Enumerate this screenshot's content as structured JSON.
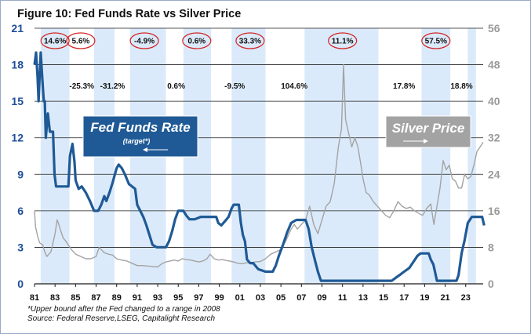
{
  "chart_data": {
    "type": "line",
    "title": "Figure 10: Fed Funds Rate vs Silver Price",
    "x_ticks": [
      "81",
      "83",
      "85",
      "87",
      "89",
      "91",
      "93",
      "95",
      "97",
      "99",
      "01",
      "03",
      "05",
      "07",
      "09",
      "11",
      "13",
      "15",
      "17",
      "19",
      "21",
      "23"
    ],
    "left_axis": {
      "ylim": [
        0,
        21
      ],
      "ticks": [
        "0",
        "3",
        "6",
        "9",
        "12",
        "15",
        "18",
        "21"
      ],
      "color": "#1f4e9a"
    },
    "right_axis": {
      "ylim": [
        0,
        56
      ],
      "ticks": [
        "0",
        "8",
        "16",
        "24",
        "32",
        "40",
        "48",
        "56"
      ],
      "color": "#9a9a9a"
    },
    "shaded_bands": [
      [
        81.6,
        84.4
      ],
      [
        86.8,
        88.8
      ],
      [
        90.3,
        93.8
      ],
      [
        95.5,
        98.2
      ],
      [
        100.2,
        103.5
      ],
      [
        107.3,
        114.5
      ],
      [
        118.7,
        121.5
      ],
      [
        123.2,
        124.0
      ]
    ],
    "annotations_circled": [
      {
        "text": "14.6%",
        "x": 83.0
      },
      {
        "text": "5.6%",
        "x": 85.5
      },
      {
        "text": "-4.9%",
        "x": 91.7
      },
      {
        "text": "0.6%",
        "x": 96.8
      },
      {
        "text": "33.3%",
        "x": 102.0
      },
      {
        "text": "11.1%",
        "x": 111.0
      },
      {
        "text": "57.5%",
        "x": 120.1
      }
    ],
    "annotations_plain": [
      {
        "text": "-25.3%",
        "x": 85.6
      },
      {
        "text": "-31.2%",
        "x": 88.6
      },
      {
        "text": "0.6%",
        "x": 94.8
      },
      {
        "text": "-9.5%",
        "x": 100.5
      },
      {
        "text": "104.6%",
        "x": 106.3
      },
      {
        "text": "17.8%",
        "x": 117.0
      },
      {
        "text": "18.8%",
        "x": 122.6
      }
    ],
    "legend_fed": {
      "title": "Fed Funds Rate",
      "subtitle": "(target*)"
    },
    "legend_silver": {
      "title": "Silver Price"
    },
    "series": [
      {
        "name": "Fed Funds Rate",
        "axis": "left",
        "color": "#1f5a96",
        "points": [
          [
            81.0,
            18.0
          ],
          [
            81.15,
            19.0
          ],
          [
            81.3,
            17.0
          ],
          [
            81.4,
            15.0
          ],
          [
            81.5,
            17.0
          ],
          [
            81.6,
            19.0
          ],
          [
            81.75,
            17.0
          ],
          [
            81.9,
            15.0
          ],
          [
            82.0,
            15.0
          ],
          [
            82.1,
            12.0
          ],
          [
            82.3,
            14.0
          ],
          [
            82.5,
            12.5
          ],
          [
            82.8,
            12.5
          ],
          [
            82.95,
            9.0
          ],
          [
            83.1,
            8.0
          ],
          [
            84.0,
            8.0
          ],
          [
            84.3,
            8.0
          ],
          [
            84.45,
            10.5
          ],
          [
            84.7,
            11.5
          ],
          [
            84.9,
            10.0
          ],
          [
            85.0,
            8.5
          ],
          [
            85.3,
            7.8
          ],
          [
            85.6,
            8.0
          ],
          [
            86.0,
            7.5
          ],
          [
            86.4,
            6.8
          ],
          [
            86.8,
            6.0
          ],
          [
            87.2,
            6.0
          ],
          [
            87.5,
            6.5
          ],
          [
            87.8,
            7.2
          ],
          [
            88.0,
            6.8
          ],
          [
            88.3,
            7.5
          ],
          [
            88.6,
            8.3
          ],
          [
            89.0,
            9.5
          ],
          [
            89.2,
            9.8
          ],
          [
            89.5,
            9.5
          ],
          [
            89.8,
            9.0
          ],
          [
            90.2,
            8.2
          ],
          [
            90.5,
            8.0
          ],
          [
            90.8,
            7.8
          ],
          [
            91.0,
            6.5
          ],
          [
            91.3,
            6.0
          ],
          [
            91.6,
            5.5
          ],
          [
            91.9,
            4.8
          ],
          [
            92.2,
            4.0
          ],
          [
            92.5,
            3.2
          ],
          [
            92.9,
            3.0
          ],
          [
            93.8,
            3.0
          ],
          [
            94.1,
            3.5
          ],
          [
            94.4,
            4.3
          ],
          [
            94.7,
            5.3
          ],
          [
            95.0,
            6.0
          ],
          [
            95.5,
            6.0
          ],
          [
            95.8,
            5.6
          ],
          [
            96.1,
            5.3
          ],
          [
            96.6,
            5.3
          ],
          [
            97.2,
            5.5
          ],
          [
            98.7,
            5.5
          ],
          [
            98.9,
            5.0
          ],
          [
            99.2,
            4.8
          ],
          [
            99.6,
            5.2
          ],
          [
            99.9,
            5.5
          ],
          [
            100.2,
            6.2
          ],
          [
            100.4,
            6.5
          ],
          [
            100.9,
            6.5
          ],
          [
            101.1,
            5.0
          ],
          [
            101.3,
            4.0
          ],
          [
            101.5,
            3.5
          ],
          [
            101.7,
            2.0
          ],
          [
            102.0,
            1.7
          ],
          [
            102.3,
            1.7
          ],
          [
            102.8,
            1.2
          ],
          [
            103.5,
            1.0
          ],
          [
            104.2,
            1.0
          ],
          [
            104.5,
            1.5
          ],
          [
            104.8,
            2.3
          ],
          [
            105.2,
            3.2
          ],
          [
            105.6,
            4.2
          ],
          [
            106.0,
            5.0
          ],
          [
            106.5,
            5.25
          ],
          [
            107.4,
            5.25
          ],
          [
            107.7,
            4.5
          ],
          [
            108.0,
            3.0
          ],
          [
            108.3,
            2.0
          ],
          [
            108.6,
            1.0
          ],
          [
            108.9,
            0.25
          ],
          [
            115.8,
            0.25
          ],
          [
            116.2,
            0.5
          ],
          [
            116.6,
            0.75
          ],
          [
            117.0,
            1.0
          ],
          [
            117.5,
            1.3
          ],
          [
            117.9,
            1.8
          ],
          [
            118.3,
            2.3
          ],
          [
            118.6,
            2.5
          ],
          [
            119.4,
            2.5
          ],
          [
            119.6,
            2.0
          ],
          [
            119.85,
            1.6
          ],
          [
            120.2,
            0.25
          ],
          [
            122.1,
            0.25
          ],
          [
            122.3,
            0.7
          ],
          [
            122.6,
            2.5
          ],
          [
            122.9,
            3.6
          ],
          [
            123.2,
            5.0
          ],
          [
            123.6,
            5.5
          ],
          [
            124.6,
            5.5
          ],
          [
            124.8,
            4.8
          ]
        ]
      },
      {
        "name": "Silver Price",
        "axis": "right",
        "color": "#a3a3a3",
        "points": [
          [
            81.0,
            16.0
          ],
          [
            81.1,
            12.5
          ],
          [
            81.3,
            10.5
          ],
          [
            81.5,
            9.0
          ],
          [
            81.8,
            8.5
          ],
          [
            82.0,
            7.0
          ],
          [
            82.2,
            6.0
          ],
          [
            82.4,
            6.5
          ],
          [
            82.6,
            7.0
          ],
          [
            82.8,
            9.0
          ],
          [
            83.0,
            11.0
          ],
          [
            83.2,
            14.0
          ],
          [
            83.3,
            13.5
          ],
          [
            83.5,
            12.0
          ],
          [
            83.8,
            10.0
          ],
          [
            84.0,
            9.5
          ],
          [
            84.3,
            8.5
          ],
          [
            84.6,
            7.5
          ],
          [
            85.0,
            6.5
          ],
          [
            85.5,
            6.0
          ],
          [
            86.0,
            5.5
          ],
          [
            86.5,
            5.5
          ],
          [
            87.0,
            6.0
          ],
          [
            87.3,
            8.0
          ],
          [
            87.5,
            7.5
          ],
          [
            87.8,
            6.8
          ],
          [
            88.2,
            6.5
          ],
          [
            88.6,
            6.3
          ],
          [
            89.0,
            5.5
          ],
          [
            89.5,
            5.2
          ],
          [
            90.0,
            5.0
          ],
          [
            90.5,
            4.5
          ],
          [
            91.0,
            4.0
          ],
          [
            91.5,
            4.0
          ],
          [
            92.0,
            3.9
          ],
          [
            92.5,
            3.8
          ],
          [
            93.0,
            3.7
          ],
          [
            93.4,
            4.4
          ],
          [
            93.8,
            4.8
          ],
          [
            94.2,
            5.0
          ],
          [
            94.6,
            5.2
          ],
          [
            95.0,
            5.0
          ],
          [
            95.4,
            5.5
          ],
          [
            95.8,
            5.3
          ],
          [
            96.2,
            5.2
          ],
          [
            96.6,
            5.0
          ],
          [
            97.0,
            4.8
          ],
          [
            97.4,
            5.0
          ],
          [
            97.8,
            5.5
          ],
          [
            98.1,
            6.5
          ],
          [
            98.5,
            5.5
          ],
          [
            98.9,
            5.2
          ],
          [
            99.3,
            5.3
          ],
          [
            99.7,
            5.1
          ],
          [
            100.0,
            5.0
          ],
          [
            100.4,
            4.8
          ],
          [
            100.8,
            4.5
          ],
          [
            101.2,
            4.4
          ],
          [
            101.6,
            4.6
          ],
          [
            102.0,
            4.6
          ],
          [
            102.5,
            4.8
          ],
          [
            103.0,
            4.9
          ],
          [
            103.5,
            5.5
          ],
          [
            104.0,
            6.5
          ],
          [
            104.5,
            7.0
          ],
          [
            105.0,
            7.5
          ],
          [
            105.5,
            9.5
          ],
          [
            106.0,
            12.0
          ],
          [
            106.3,
            13.0
          ],
          [
            106.6,
            12.0
          ],
          [
            107.0,
            13.0
          ],
          [
            107.4,
            14.0
          ],
          [
            107.8,
            17.0
          ],
          [
            108.2,
            13.0
          ],
          [
            108.6,
            11.0
          ],
          [
            109.0,
            14.0
          ],
          [
            109.4,
            17.0
          ],
          [
            109.8,
            18.0
          ],
          [
            110.2,
            22.0
          ],
          [
            110.6,
            30.0
          ],
          [
            110.9,
            34.0
          ],
          [
            111.1,
            48.0
          ],
          [
            111.3,
            36.0
          ],
          [
            111.6,
            33.0
          ],
          [
            111.9,
            30.0
          ],
          [
            112.2,
            32.0
          ],
          [
            112.5,
            30.0
          ],
          [
            112.8,
            26.0
          ],
          [
            113.0,
            23.0
          ],
          [
            113.3,
            20.0
          ],
          [
            113.6,
            19.5
          ],
          [
            114.0,
            18.0
          ],
          [
            114.4,
            17.0
          ],
          [
            114.8,
            16.0
          ],
          [
            115.2,
            15.0
          ],
          [
            115.6,
            14.5
          ],
          [
            116.0,
            16.0
          ],
          [
            116.4,
            18.0
          ],
          [
            116.8,
            17.0
          ],
          [
            117.2,
            16.5
          ],
          [
            117.6,
            16.8
          ],
          [
            118.0,
            16.0
          ],
          [
            118.4,
            15.5
          ],
          [
            118.8,
            15.0
          ],
          [
            119.2,
            16.5
          ],
          [
            119.6,
            17.5
          ],
          [
            119.9,
            13.0
          ],
          [
            120.2,
            17.0
          ],
          [
            120.5,
            21.0
          ],
          [
            120.8,
            27.0
          ],
          [
            121.1,
            25.0
          ],
          [
            121.4,
            26.0
          ],
          [
            121.7,
            23.0
          ],
          [
            122.0,
            22.5
          ],
          [
            122.3,
            21.0
          ],
          [
            122.6,
            21.0
          ],
          [
            122.9,
            24.0
          ],
          [
            123.2,
            23.0
          ],
          [
            123.5,
            23.5
          ],
          [
            123.8,
            26.0
          ],
          [
            124.1,
            29.0
          ],
          [
            124.4,
            30.0
          ],
          [
            124.7,
            31.0
          ]
        ]
      }
    ],
    "footnote": "*Upper bound after the Fed changed to a range in 2008",
    "source": "Source: Federal Reserve,LSEG, Capitalight Research"
  }
}
